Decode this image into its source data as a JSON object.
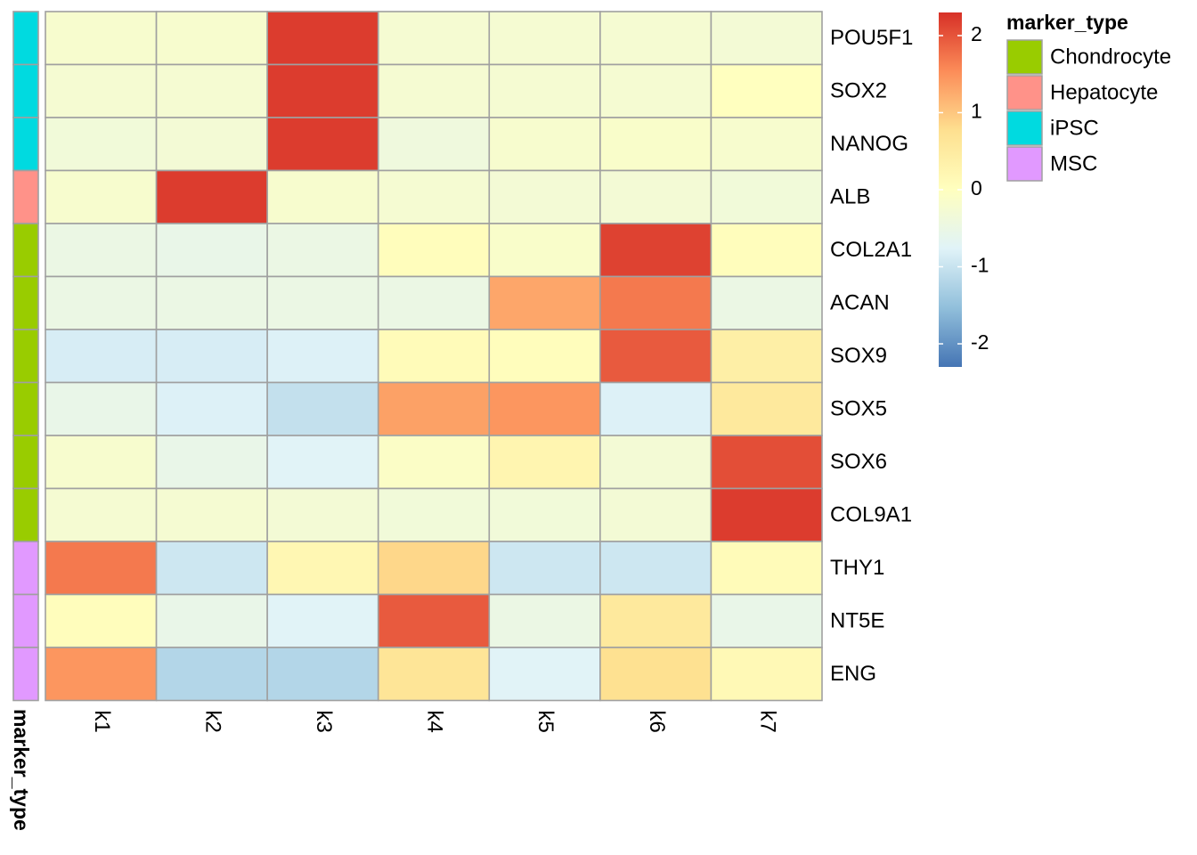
{
  "chart_data": {
    "type": "heatmap",
    "columns": [
      "k1",
      "k2",
      "k3",
      "k4",
      "k5",
      "k6",
      "k7"
    ],
    "rows": [
      "POU5F1",
      "SOX2",
      "NANOG",
      "ALB",
      "COL2A1",
      "ACAN",
      "SOX9",
      "SOX5",
      "SOX6",
      "COL9A1",
      "THY1",
      "NT5E",
      "ENG"
    ],
    "values": [
      [
        -0.2,
        -0.2,
        2.2,
        -0.25,
        -0.25,
        -0.25,
        -0.3
      ],
      [
        -0.25,
        -0.25,
        2.2,
        -0.25,
        -0.25,
        -0.25,
        0.0
      ],
      [
        -0.35,
        -0.3,
        2.2,
        -0.4,
        -0.2,
        -0.15,
        -0.2
      ],
      [
        -0.2,
        2.2,
        -0.2,
        -0.25,
        -0.3,
        -0.3,
        -0.35
      ],
      [
        -0.5,
        -0.55,
        -0.5,
        0.05,
        -0.15,
        2.15,
        0.05
      ],
      [
        -0.5,
        -0.5,
        -0.5,
        -0.5,
        1.3,
        1.7,
        -0.5
      ],
      [
        -0.85,
        -0.85,
        -0.8,
        0.1,
        0.05,
        1.95,
        0.4
      ],
      [
        -0.55,
        -0.8,
        -1.05,
        1.35,
        1.45,
        -0.8,
        0.55
      ],
      [
        -0.2,
        -0.55,
        -0.75,
        -0.1,
        0.25,
        -0.3,
        2.05
      ],
      [
        -0.25,
        -0.25,
        -0.3,
        -0.35,
        -0.35,
        -0.3,
        2.2
      ],
      [
        1.7,
        -0.95,
        0.2,
        0.85,
        -0.95,
        -0.95,
        0.1
      ],
      [
        0.05,
        -0.55,
        -0.75,
        1.95,
        -0.5,
        0.55,
        -0.55
      ],
      [
        1.45,
        -1.2,
        -1.2,
        0.65,
        -0.75,
        0.75,
        0.15
      ]
    ],
    "annotation": {
      "title": "marker_type",
      "values": [
        "iPSC",
        "iPSC",
        "iPSC",
        "Hepatocyte",
        "Chondrocyte",
        "Chondrocyte",
        "Chondrocyte",
        "Chondrocyte",
        "Chondrocyte",
        "Chondrocyte",
        "MSC",
        "MSC",
        "MSC"
      ],
      "legend": [
        {
          "label": "Chondrocyte",
          "color": "#99CC00"
        },
        {
          "label": "Hepatocyte",
          "color": "#FF9289"
        },
        {
          "label": "iPSC",
          "color": "#00DAE0"
        },
        {
          "label": "MSC",
          "color": "#E199FF"
        }
      ]
    },
    "color_scale": {
      "range": [
        -2.3,
        2.3
      ],
      "ticks": [
        "2",
        "1",
        "0",
        "-1",
        "-2"
      ],
      "tick_values": [
        2,
        1,
        0,
        -1,
        -2
      ],
      "palette": [
        "#4575B4",
        "#91BFDB",
        "#E0F3F8",
        "#FFFFBF",
        "#FEE090",
        "#FC8D59",
        "#D73027"
      ]
    },
    "grid_color": "#A0A0A0"
  }
}
